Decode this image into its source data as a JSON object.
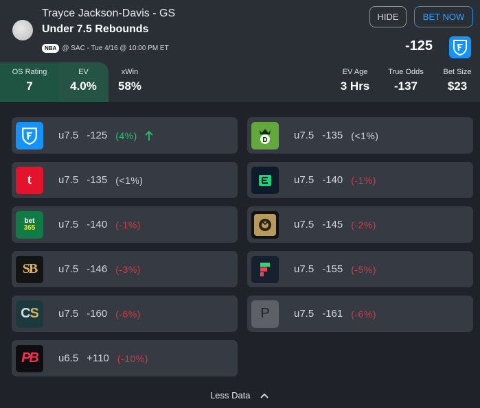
{
  "header": {
    "player": "Trayce Jackson-Davis - GS",
    "market": "Under 7.5 Rebounds",
    "league": "NBA",
    "game_info": "@ SAC - Tue 4/16 @ 10:00 PM ET",
    "hide_label": "HIDE",
    "bet_now_label": "BET NOW",
    "odds": "-125",
    "book_icon": "fanduel-icon"
  },
  "stats": {
    "os_rating": {
      "label": "OS Rating",
      "value": "7"
    },
    "ev": {
      "label": "EV",
      "value": "4.0%"
    },
    "xwin": {
      "label": "xWin",
      "value": "58%"
    },
    "ev_age": {
      "label": "EV Age",
      "value": "3 Hrs"
    },
    "true_odds": {
      "label": "True Odds",
      "value": "-137"
    },
    "bet_size": {
      "label": "Bet Size",
      "value": "$23"
    }
  },
  "books": [
    {
      "icon": "fanduel-icon",
      "line": "u7.5",
      "odds": "-125",
      "ev": "(4%)",
      "tone": "pos",
      "color": "#1493ff"
    },
    {
      "icon": "draftkings-icon",
      "line": "u7.5",
      "odds": "-135",
      "ev": "(<1%)",
      "tone": "neutral",
      "color": "#63a83c"
    },
    {
      "icon": "tipico-icon",
      "line": "u7.5",
      "odds": "-135",
      "ev": "(<1%)",
      "tone": "neutral",
      "color": "#e3132b"
    },
    {
      "icon": "espnbet-icon",
      "line": "u7.5",
      "odds": "-140",
      "ev": "(-1%)",
      "tone": "neg",
      "color": "#0d1b2a"
    },
    {
      "icon": "bet365-icon",
      "line": "u7.5",
      "odds": "-140",
      "ev": "(-1%)",
      "tone": "neg",
      "color": "#0f7b45"
    },
    {
      "icon": "betmgm-icon",
      "line": "u7.5",
      "odds": "-145",
      "ev": "(-2%)",
      "tone": "neg",
      "color": "#b89a5e"
    },
    {
      "icon": "superbook-icon",
      "line": "u7.5",
      "odds": "-146",
      "ev": "(-3%)",
      "tone": "neg",
      "color": "#141414"
    },
    {
      "icon": "fliff-icon",
      "line": "u7.5",
      "odds": "-155",
      "ev": "(-5%)",
      "tone": "neg",
      "color": "#16202e"
    },
    {
      "icon": "caesars-icon",
      "line": "u7.5",
      "odds": "-160",
      "ev": "(-6%)",
      "tone": "neg",
      "color": "#1b3a3f"
    },
    {
      "icon": "pointsbet-p-icon",
      "line": "u7.5",
      "odds": "-161",
      "ev": "(-6%)",
      "tone": "neg",
      "color": "#5d6167",
      "letter": "P"
    },
    {
      "icon": "prizepicks-icon",
      "line": "u6.5",
      "odds": "+110",
      "ev": "(-10%)",
      "tone": "neg",
      "color": "#0e0e12"
    }
  ],
  "footer": {
    "toggle_label": "Less Data"
  }
}
